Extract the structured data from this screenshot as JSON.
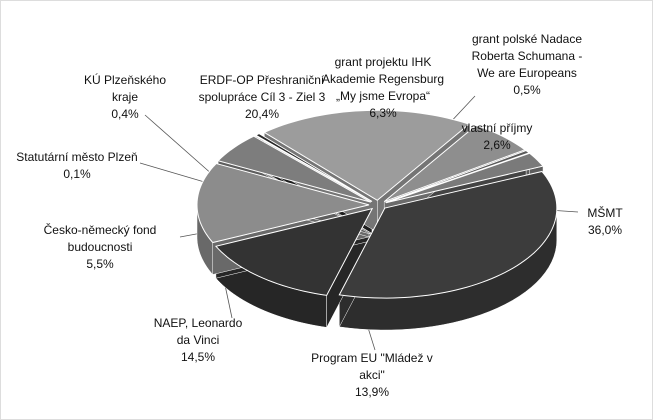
{
  "chart_data": {
    "type": "pie",
    "categories": [
      "MŠMT",
      "Program EU \"Mládež v\nakci\"",
      "NAEP, Leonardo\nda Vinci",
      "Česko-německý fond\nbudoucnosti",
      "Statutární město Plzeň",
      "KÚ Plzeňského\nkraje",
      "ERDF-OP Přeshraniční\nspolupráce Cíl 3 - Ziel 3",
      "grant projektu IHK\nAkademie Regensburg\n„My jsme Evropa“",
      "grant polské Nadace\nRoberta Schumana -\nWe are Europeans",
      "vlastní příjmy"
    ],
    "values": [
      36.0,
      13.9,
      14.5,
      5.5,
      0.1,
      0.4,
      20.4,
      6.3,
      0.5,
      2.6
    ],
    "value_labels": [
      "36,0%",
      "13,9%",
      "14,5%",
      "5,5%",
      "0,1%",
      "0,4%",
      "20,4%",
      "6,3%",
      "0,5%",
      "2,6%"
    ],
    "colors": [
      "#3c3c3c",
      "#333333",
      "#8c8c8c",
      "#7d7d7d",
      "#111111",
      "#262626",
      "#9c9c9c",
      "#8e8e8e",
      "#5a5a5a",
      "#7a7a7a"
    ]
  }
}
